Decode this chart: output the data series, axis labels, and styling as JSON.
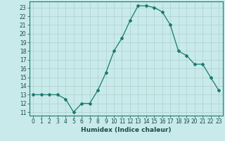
{
  "title": "",
  "xlabel": "Humidex (Indice chaleur)",
  "x": [
    0,
    1,
    2,
    3,
    4,
    5,
    6,
    7,
    8,
    9,
    10,
    11,
    12,
    13,
    14,
    15,
    16,
    17,
    18,
    19,
    20,
    21,
    22,
    23
  ],
  "y": [
    13,
    13,
    13,
    13,
    12.5,
    11,
    12,
    12,
    13.5,
    15.5,
    18,
    19.5,
    21.5,
    23.2,
    23.2,
    23,
    22.5,
    21,
    18,
    17.5,
    16.5,
    16.5,
    15,
    13.5
  ],
  "ylim_min": 10.6,
  "ylim_max": 23.7,
  "yticks": [
    11,
    12,
    13,
    14,
    15,
    16,
    17,
    18,
    19,
    20,
    21,
    22,
    23
  ],
  "xticks": [
    0,
    1,
    2,
    3,
    4,
    5,
    6,
    7,
    8,
    9,
    10,
    11,
    12,
    13,
    14,
    15,
    16,
    17,
    18,
    19,
    20,
    21,
    22,
    23
  ],
  "line_color": "#1a7a6e",
  "marker": "D",
  "marker_size": 2.0,
  "bg_color": "#c8eaea",
  "grid_color": "#b0d0d0",
  "xlabel_fontsize": 6.5,
  "tick_fontsize": 5.5
}
